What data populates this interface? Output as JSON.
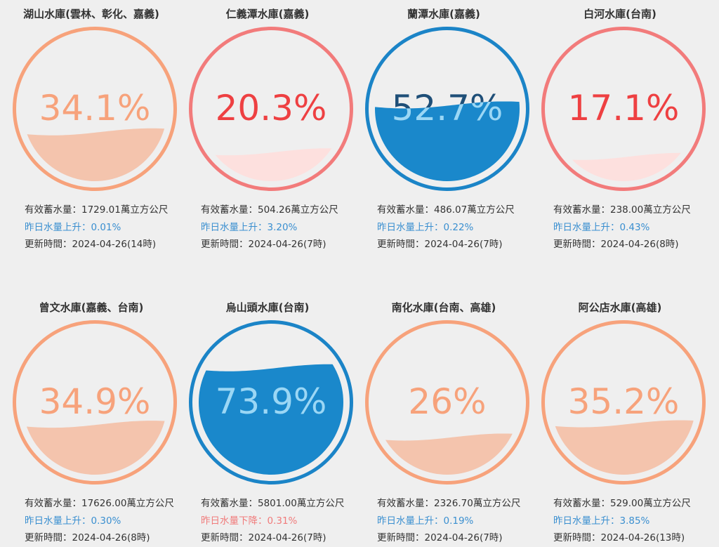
{
  "reservoirs": [
    {
      "title": "湖山水庫(雲林、彰化、嘉義)",
      "percent": 34.1,
      "percent_label": "34.1%",
      "storage": "有效蓄水量：1729.01萬立方公尺",
      "trend_label": "昨日水量上升：0.01%",
      "trend_direction": "up",
      "updated": "更新時間：2024-04-26(14時)",
      "colors": {
        "ring": "#f7a27b",
        "text": "#f7a27b",
        "fill": "#f4c4ad",
        "fill_text": "#f4c4ad"
      }
    },
    {
      "title": "仁義潭水庫(嘉義)",
      "percent": 20.3,
      "percent_label": "20.3%",
      "storage": "有效蓄水量：504.26萬立方公尺",
      "trend_label": "昨日水量上升：3.20%",
      "trend_direction": "up",
      "updated": "更新時間：2024-04-26(7時)",
      "colors": {
        "ring": "#f27b7b",
        "text": "#ee4042",
        "fill": "#fde0de",
        "fill_text": "#ee4042"
      }
    },
    {
      "title": "蘭潭水庫(嘉義)",
      "percent": 52.7,
      "percent_label": "52.7%",
      "storage": "有效蓄水量：486.07萬立方公尺",
      "trend_label": "昨日水量上升：0.22%",
      "trend_direction": "up",
      "updated": "更新時間：2024-04-26(7時)",
      "colors": {
        "ring": "#1b84c7",
        "text": "#1f4f78",
        "fill": "#1a88cb",
        "fill_text": "#9bd7f5"
      }
    },
    {
      "title": "白河水庫(台南)",
      "percent": 17.1,
      "percent_label": "17.1%",
      "storage": "有效蓄水量：238.00萬立方公尺",
      "trend_label": "昨日水量上升：0.43%",
      "trend_direction": "up",
      "updated": "更新時間：2024-04-26(8時)",
      "colors": {
        "ring": "#f27b7b",
        "text": "#ee4042",
        "fill": "#fde0de",
        "fill_text": "#ee4042"
      }
    },
    {
      "title": "曾文水庫(嘉義、台南)",
      "percent": 34.9,
      "percent_label": "34.9%",
      "storage": "有效蓄水量：17626.00萬立方公尺",
      "trend_label": "昨日水量上升：0.30%",
      "trend_direction": "up",
      "updated": "更新時間：2024-04-26(8時)",
      "colors": {
        "ring": "#f7a27b",
        "text": "#f7a27b",
        "fill": "#f4c4ad",
        "fill_text": "#f4c4ad"
      }
    },
    {
      "title": "烏山頭水庫(台南)",
      "percent": 73.9,
      "percent_label": "73.9%",
      "storage": "有效蓄水量：5801.00萬立方公尺",
      "trend_label": "昨日水量下降：0.31%",
      "trend_direction": "down",
      "updated": "更新時間：2024-04-26(7時)",
      "colors": {
        "ring": "#1b84c7",
        "text": "#1f4f78",
        "fill": "#1a88cb",
        "fill_text": "#9bd7f5"
      }
    },
    {
      "title": "南化水庫(台南、高雄)",
      "percent": 26,
      "percent_label": "26%",
      "storage": "有效蓄水量：2326.70萬立方公尺",
      "trend_label": "昨日水量上升：0.19%",
      "trend_direction": "up",
      "updated": "更新時間：2024-04-26(7時)",
      "colors": {
        "ring": "#f7a27b",
        "text": "#f7a27b",
        "fill": "#f4c4ad",
        "fill_text": "#f4c4ad"
      }
    },
    {
      "title": "阿公店水庫(高雄)",
      "percent": 35.2,
      "percent_label": "35.2%",
      "storage": "有效蓄水量：529.00萬立方公尺",
      "trend_label": "昨日水量上升：3.85%",
      "trend_direction": "up",
      "updated": "更新時間：2024-04-26(13時)",
      "colors": {
        "ring": "#f7a27b",
        "text": "#f7a27b",
        "fill": "#f4c4ad",
        "fill_text": "#f4c4ad"
      }
    }
  ]
}
